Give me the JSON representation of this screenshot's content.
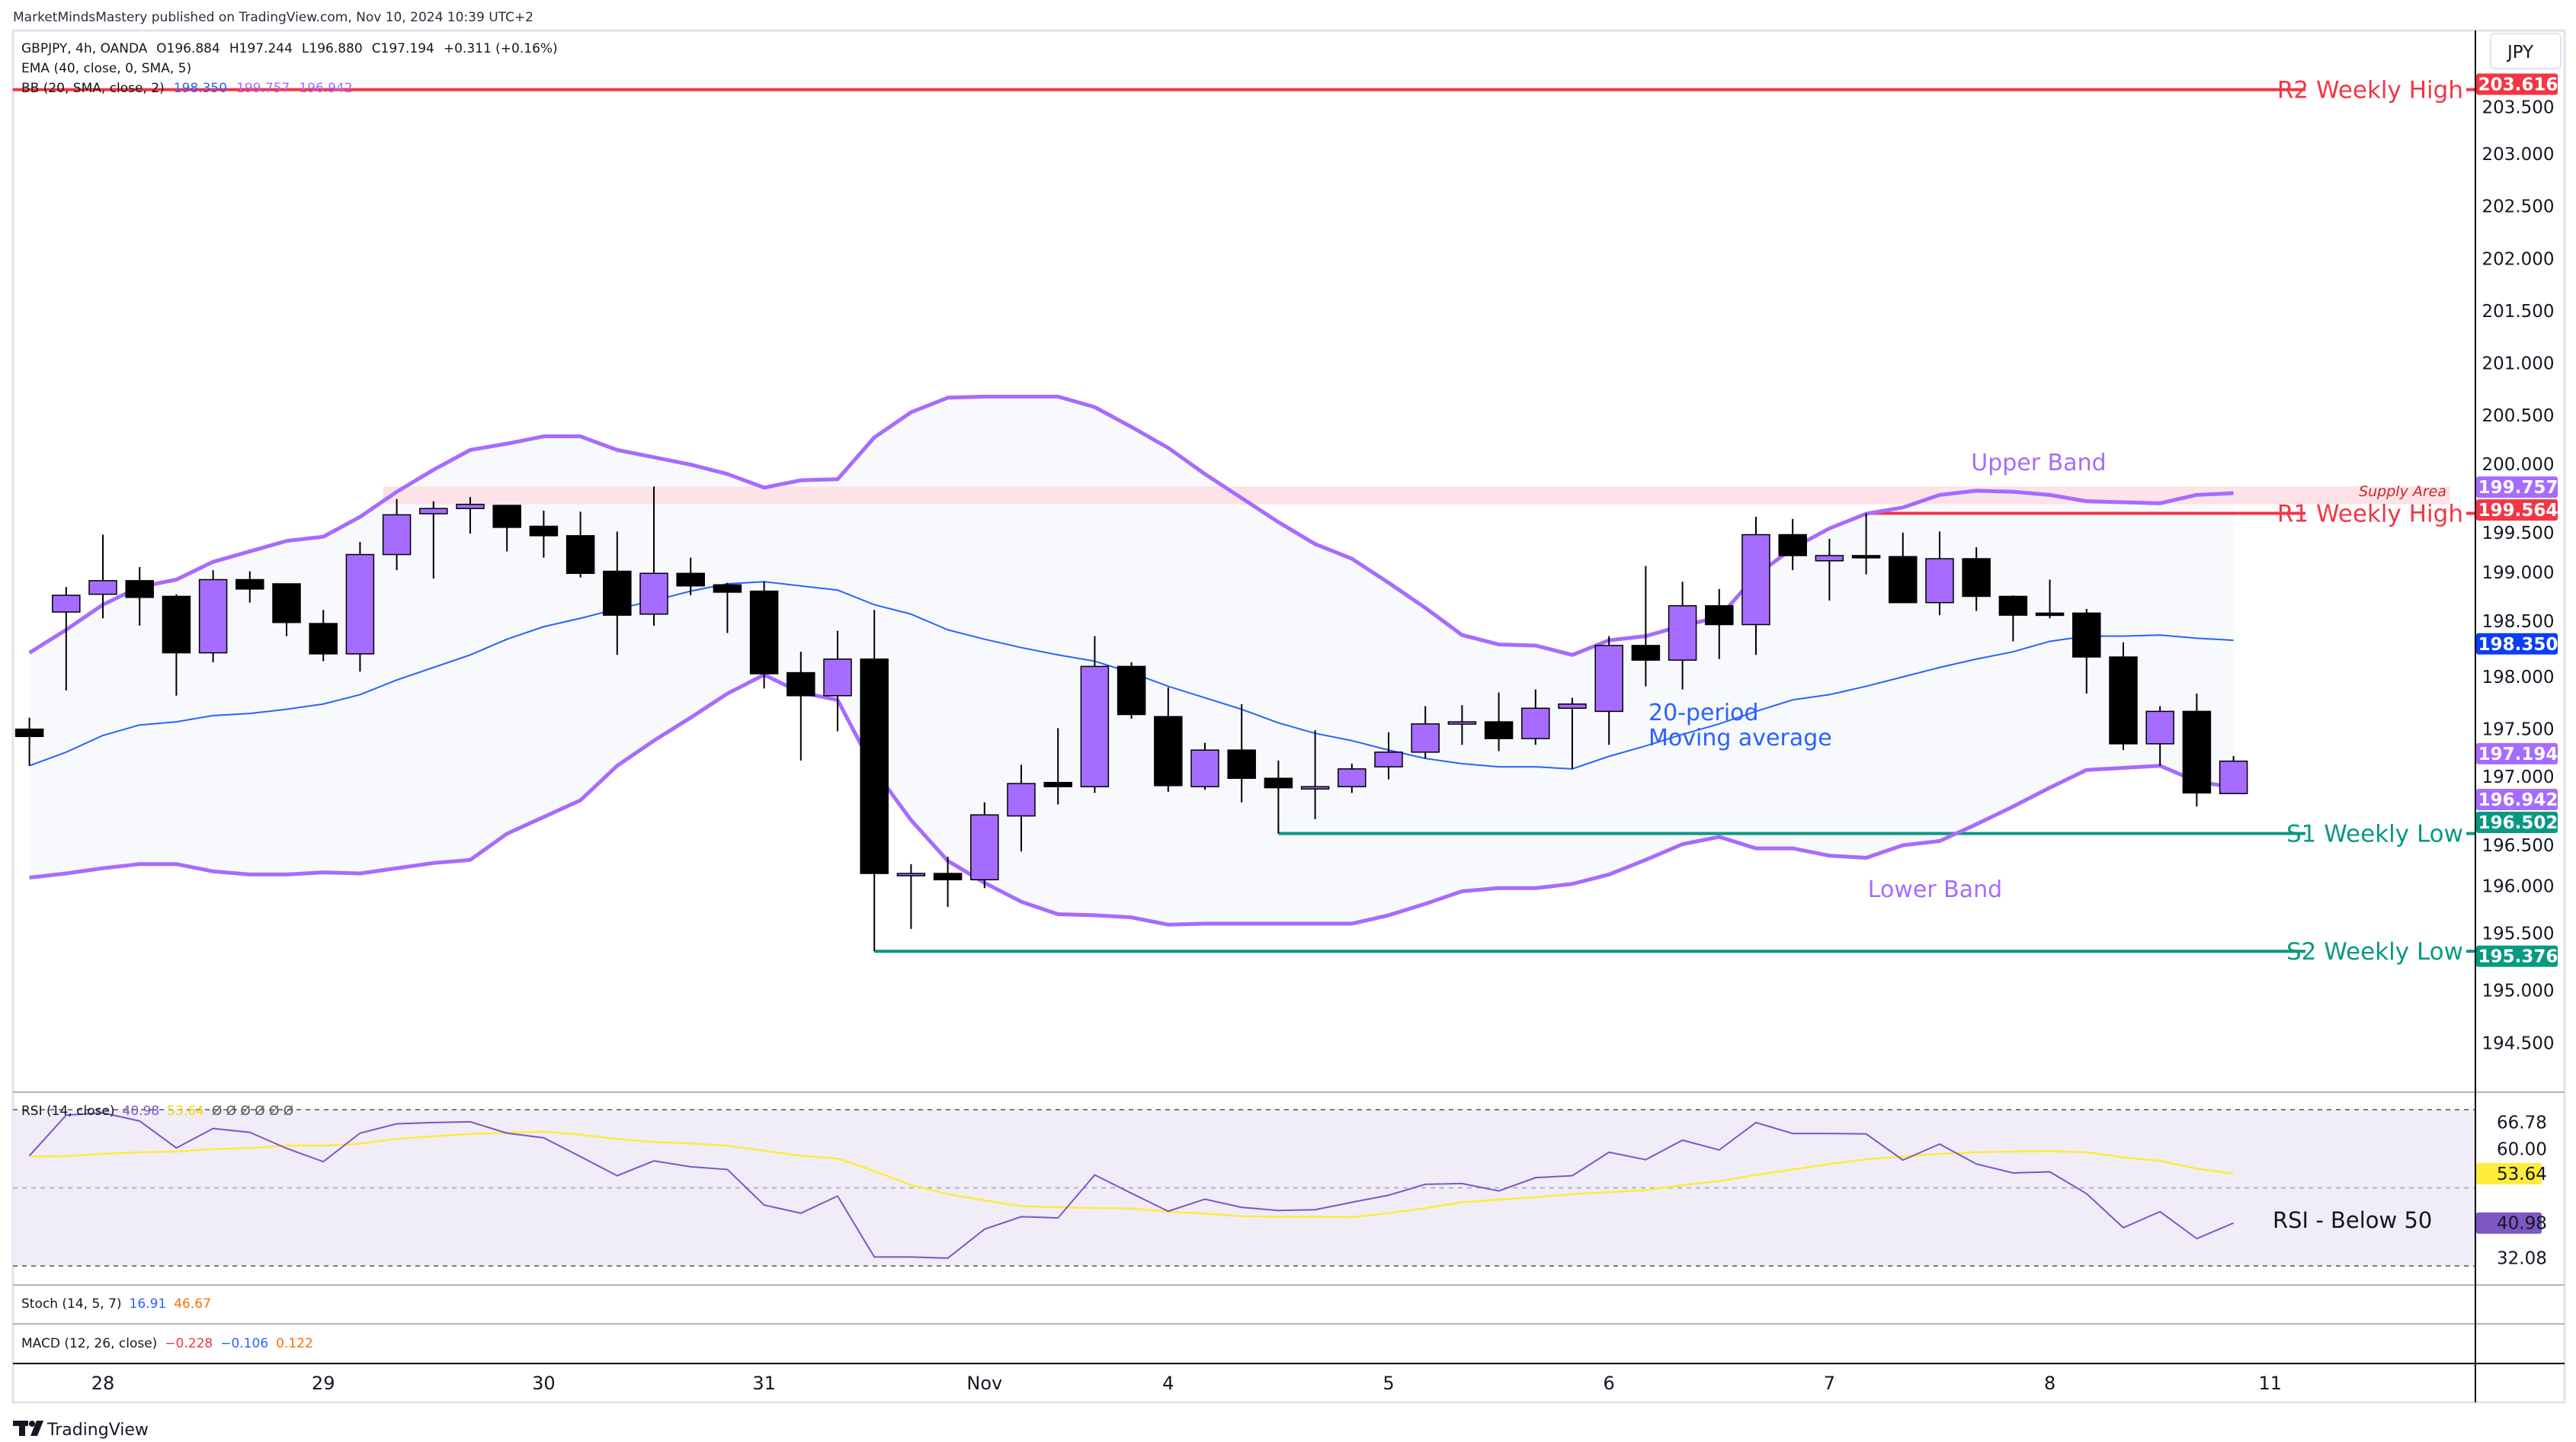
{
  "header": {
    "published": "MarketMindsMastery published on TradingView.com, Nov 10, 2024 10:39 UTC+2"
  },
  "legend": {
    "symbol": "GBPJPY, 4h, OANDA",
    "open": "O196.884",
    "high": "H197.244",
    "low": "L196.880",
    "close": "C197.194",
    "change": "+0.311 (+0.16%)",
    "ema": "EMA (40, close, 0, SMA, 5)",
    "bb": "BB (20, SMA, close, 2)",
    "bb_basis": "198.350",
    "bb_upper": "199.757",
    "bb_lower": "196.942"
  },
  "currency_button": "JPY",
  "panes": {
    "rsi": {
      "label": "RSI (14, close)",
      "value": "40.98",
      "ma_value": "53.64",
      "extras": "Ø Ø Ø Ø Ø Ø",
      "annotation": "RSI -  Below 50"
    },
    "stoch": {
      "label": "Stoch (14, 5, 7)",
      "k": "16.91",
      "d": "46.67"
    },
    "macd": {
      "label": "MACD (12, 26, close)",
      "macd": "−0.228",
      "signal": "−0.106",
      "hist": "0.122"
    }
  },
  "annotations": {
    "upper_band": "Upper Band",
    "lower_band": "Lower Band",
    "ma_line1": "20-period",
    "ma_line2": "Moving average",
    "supply": "Supply Area"
  },
  "footer": {
    "brand": "TradingView"
  },
  "colors": {
    "bull": "#a66bff",
    "bear": "#000000",
    "band": "#a66bff",
    "basis": "#2962ff",
    "resistance": "#f23645",
    "support": "#089981",
    "rsi": "#7e57c2",
    "rsi_ma": "#ffeb3b",
    "supply_fill": "#fde0e4"
  },
  "chart_data": {
    "type": "candlestick",
    "symbol": "GBPJPY",
    "timeframe": "4h",
    "ylim": [
      194.2,
      203.9
    ],
    "price_ticks": [
      "194.500",
      "195.000",
      "195.500",
      "196.000",
      "196.500",
      "197.000",
      "197.500",
      "198.000",
      "198.500",
      "199.000",
      "199.500",
      "200.000",
      "200.500",
      "201.000",
      "201.500",
      "202.000",
      "202.500",
      "203.000",
      "203.500"
    ],
    "time_labels": [
      {
        "label": "28",
        "bar": 3
      },
      {
        "label": "29",
        "bar": 9
      },
      {
        "label": "30",
        "bar": 15
      },
      {
        "label": "31",
        "bar": 21
      },
      {
        "label": "Nov",
        "bar": 27
      },
      {
        "label": "4",
        "bar": 32
      },
      {
        "label": "5",
        "bar": 38
      },
      {
        "label": "6",
        "bar": 44
      },
      {
        "label": "7",
        "bar": 50
      },
      {
        "label": "8",
        "bar": 56
      },
      {
        "label": "11",
        "bar": 62
      }
    ],
    "candles_ohlc": [
      [
        197.5,
        197.61,
        197.15,
        197.43
      ],
      [
        198.62,
        198.86,
        197.87,
        198.78
      ],
      [
        198.79,
        199.36,
        198.56,
        198.92
      ],
      [
        198.92,
        199.05,
        198.49,
        198.76
      ],
      [
        198.77,
        198.79,
        197.82,
        198.23
      ],
      [
        198.23,
        199.02,
        198.14,
        198.93
      ],
      [
        198.93,
        199.01,
        198.71,
        198.84
      ],
      [
        198.89,
        198.89,
        198.39,
        198.52
      ],
      [
        198.51,
        198.64,
        198.15,
        198.22
      ],
      [
        198.22,
        199.29,
        198.05,
        199.17
      ],
      [
        199.17,
        199.7,
        199.02,
        199.55
      ],
      [
        199.56,
        199.68,
        198.94,
        199.61
      ],
      [
        199.61,
        199.72,
        199.37,
        199.65
      ],
      [
        199.64,
        199.64,
        199.2,
        199.43
      ],
      [
        199.44,
        199.59,
        199.14,
        199.35
      ],
      [
        199.35,
        199.58,
        198.95,
        198.99
      ],
      [
        199.01,
        199.39,
        198.21,
        198.59
      ],
      [
        198.6,
        199.82,
        198.49,
        198.99
      ],
      [
        198.99,
        199.14,
        198.78,
        198.87
      ],
      [
        198.88,
        198.9,
        198.42,
        198.81
      ],
      [
        198.82,
        198.91,
        197.89,
        198.03
      ],
      [
        198.04,
        198.24,
        197.2,
        197.82
      ],
      [
        197.82,
        198.44,
        197.48,
        198.17
      ],
      [
        198.17,
        198.64,
        195.376,
        196.12
      ],
      [
        196.11,
        196.21,
        195.59,
        196.12
      ],
      [
        196.12,
        196.28,
        195.8,
        196.06
      ],
      [
        196.06,
        196.8,
        195.98,
        196.68
      ],
      [
        196.67,
        197.16,
        196.33,
        196.98
      ],
      [
        196.99,
        197.51,
        196.78,
        196.95
      ],
      [
        196.95,
        198.39,
        196.89,
        198.1
      ],
      [
        198.1,
        198.14,
        197.6,
        197.64
      ],
      [
        197.62,
        197.9,
        196.9,
        196.96
      ],
      [
        196.95,
        197.37,
        196.92,
        197.3
      ],
      [
        197.3,
        197.74,
        196.8,
        197.03
      ],
      [
        197.03,
        197.2,
        196.502,
        196.94
      ],
      [
        196.93,
        197.49,
        196.64,
        196.95
      ],
      [
        196.95,
        197.17,
        196.89,
        197.12
      ],
      [
        197.14,
        197.47,
        197.02,
        197.28
      ],
      [
        197.28,
        197.72,
        197.22,
        197.55
      ],
      [
        197.55,
        197.73,
        197.35,
        197.57
      ],
      [
        197.57,
        197.85,
        197.29,
        197.41
      ],
      [
        197.41,
        197.88,
        197.35,
        197.7
      ],
      [
        197.7,
        197.8,
        197.12,
        197.74
      ],
      [
        197.67,
        198.39,
        197.35,
        198.3
      ],
      [
        198.3,
        199.06,
        197.91,
        198.16
      ],
      [
        198.16,
        198.91,
        197.88,
        198.68
      ],
      [
        198.68,
        198.84,
        198.17,
        198.5
      ],
      [
        198.5,
        199.53,
        198.21,
        199.36
      ],
      [
        199.36,
        199.51,
        199.02,
        199.16
      ],
      [
        199.11,
        199.32,
        198.73,
        199.16
      ],
      [
        199.16,
        199.564,
        198.98,
        199.15
      ],
      [
        199.15,
        199.38,
        198.71,
        198.71
      ],
      [
        198.71,
        199.39,
        198.59,
        199.13
      ],
      [
        199.13,
        199.24,
        198.63,
        198.77
      ],
      [
        198.77,
        198.78,
        198.34,
        198.59
      ],
      [
        198.61,
        198.93,
        198.56,
        198.6
      ],
      [
        198.61,
        198.65,
        197.84,
        198.19
      ],
      [
        198.19,
        198.33,
        197.3,
        197.36
      ],
      [
        197.36,
        197.72,
        197.15,
        197.67
      ],
      [
        197.67,
        197.84,
        196.76,
        196.89
      ],
      [
        196.884,
        197.244,
        196.88,
        197.194
      ]
    ],
    "bb_upper": [
      198.23,
      198.45,
      198.69,
      198.86,
      198.93,
      199.1,
      199.2,
      199.3,
      199.34,
      199.53,
      199.77,
      199.98,
      200.17,
      200.23,
      200.3,
      200.3,
      200.17,
      200.1,
      200.03,
      199.94,
      199.81,
      199.88,
      199.89,
      200.29,
      200.53,
      200.67,
      200.68,
      200.68,
      200.68,
      200.58,
      200.39,
      200.19,
      199.94,
      199.71,
      199.48,
      199.27,
      199.13,
      198.9,
      198.66,
      198.4,
      198.31,
      198.3,
      198.21,
      198.35,
      198.39,
      198.49,
      198.57,
      198.97,
      199.23,
      199.42,
      199.56,
      199.62,
      199.74,
      199.78,
      199.77,
      199.74,
      199.68,
      199.67,
      199.66,
      199.74,
      199.757
    ],
    "bb_basis": [
      197.15,
      197.28,
      197.44,
      197.54,
      197.57,
      197.63,
      197.65,
      197.69,
      197.74,
      197.83,
      197.97,
      198.09,
      198.21,
      198.36,
      198.48,
      198.56,
      198.65,
      198.73,
      198.82,
      198.89,
      198.91,
      198.87,
      198.83,
      198.69,
      198.6,
      198.45,
      198.36,
      198.28,
      198.21,
      198.15,
      198.04,
      197.91,
      197.8,
      197.69,
      197.56,
      197.46,
      197.39,
      197.3,
      197.22,
      197.17,
      197.14,
      197.14,
      197.12,
      197.24,
      197.34,
      197.45,
      197.55,
      197.67,
      197.78,
      197.83,
      197.91,
      198.0,
      198.09,
      198.17,
      198.24,
      198.34,
      198.39,
      198.39,
      198.4,
      198.37,
      198.35
    ],
    "bb_lower": [
      196.08,
      196.12,
      196.17,
      196.21,
      196.21,
      196.14,
      196.11,
      196.11,
      196.13,
      196.12,
      196.17,
      196.22,
      196.25,
      196.5,
      196.66,
      196.82,
      197.15,
      197.39,
      197.61,
      197.84,
      198.02,
      197.85,
      197.78,
      197.11,
      196.63,
      196.24,
      196.03,
      195.85,
      195.73,
      195.72,
      195.7,
      195.63,
      195.64,
      195.64,
      195.64,
      195.64,
      195.64,
      195.72,
      195.83,
      195.95,
      195.98,
      195.98,
      196.02,
      196.11,
      196.25,
      196.4,
      196.47,
      196.36,
      196.36,
      196.29,
      196.27,
      196.39,
      196.43,
      196.59,
      196.76,
      196.94,
      197.11,
      197.13,
      197.15,
      197.0,
      196.942
    ],
    "levels": [
      {
        "label": "R2 Weekly High",
        "value": 203.616,
        "value_text": "203.616",
        "kind": "resistance",
        "start_bar": 1
      },
      {
        "label": "R1 Weekly High",
        "value": 199.564,
        "value_text": "199.564",
        "kind": "resistance",
        "start_bar": 51
      },
      {
        "label": "S1 Weekly Low",
        "value": 196.502,
        "value_text": "196.502",
        "kind": "support",
        "start_bar": 35
      },
      {
        "label": "S2 Weekly Low",
        "value": 195.376,
        "value_text": "195.376",
        "kind": "support",
        "start_bar": 24
      }
    ],
    "supply_zone": {
      "from_bar": 11,
      "low": 199.65,
      "high": 199.82
    },
    "price_badges": [
      {
        "text": "199.757",
        "value": 199.757,
        "color": "#a66bff"
      },
      {
        "text": "198.350",
        "value": 198.35,
        "color": "#0c3ef5"
      },
      {
        "text": "197.194",
        "value": 197.194,
        "color": "#a66bff"
      },
      {
        "text": "196.942",
        "value": 196.942,
        "color": "#a66bff"
      }
    ],
    "rsi": {
      "ylim": [
        30,
        70
      ],
      "ticks": [
        "66.78",
        "60.00",
        "32.08"
      ],
      "tick_values": [
        66.78,
        60.0,
        32.08
      ],
      "rsi_values": [
        58.2,
        68.6,
        69.2,
        67.1,
        60.2,
        65.2,
        64.2,
        60.1,
        56.7,
        64.0,
        66.4,
        66.7,
        66.9,
        64.0,
        62.8,
        58.0,
        53.1,
        56.9,
        55.4,
        54.7,
        45.6,
        43.5,
        47.9,
        32.3,
        32.3,
        32.0,
        39.4,
        42.6,
        42.3,
        53.3,
        48.6,
        44.0,
        47.1,
        45.0,
        44.2,
        44.4,
        46.3,
        48.1,
        50.9,
        51.1,
        49.2,
        52.6,
        53.1,
        59.1,
        57.2,
        62.2,
        59.7,
        66.7,
        63.9,
        63.9,
        63.8,
        57.1,
        61.2,
        56.1,
        53.8,
        54.1,
        48.5,
        39.8,
        43.9,
        37.0,
        40.98
      ],
      "ma_values": [
        58.0,
        58.1,
        58.7,
        59.1,
        59.3,
        59.9,
        60.2,
        60.8,
        60.8,
        61.3,
        62.5,
        63.2,
        63.8,
        64.1,
        64.4,
        63.6,
        62.5,
        61.7,
        61.4,
        60.8,
        59.5,
        58.2,
        57.5,
        54.3,
        50.7,
        48.4,
        46.8,
        45.3,
        45.0,
        44.8,
        44.7,
        43.9,
        43.4,
        42.7,
        42.6,
        42.6,
        42.5,
        43.5,
        44.8,
        46.3,
        47.0,
        47.6,
        48.4,
        48.9,
        49.4,
        50.7,
        51.7,
        53.3,
        54.7,
        56.1,
        57.3,
        58.0,
        58.7,
        59.1,
        59.3,
        59.4,
        59.1,
        57.8,
        56.9,
        54.9,
        53.64
      ]
    }
  }
}
